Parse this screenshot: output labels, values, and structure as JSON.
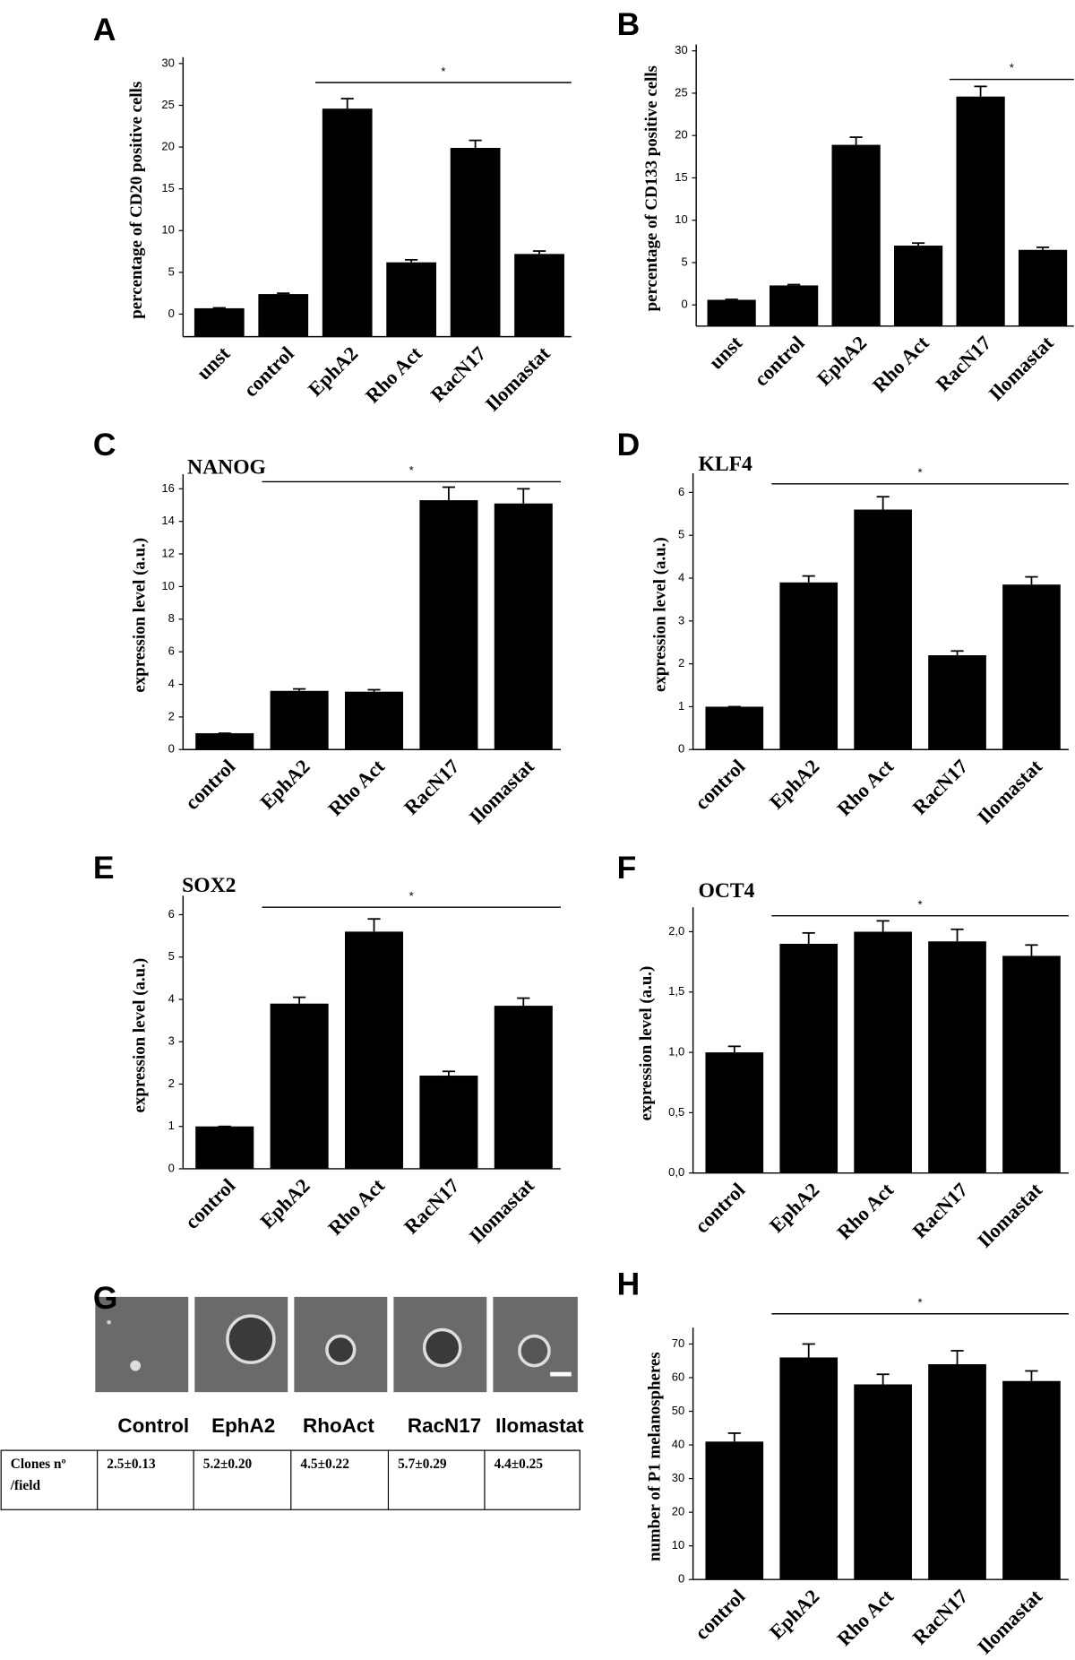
{
  "chart_data": [
    {
      "type": "bar",
      "panel": "A",
      "ylabel": "percentage of CD20 positive cells",
      "categories": [
        "unst",
        "control",
        "EphA2",
        "Rho Act",
        "RacN17",
        "Ilomastat"
      ],
      "values": [
        0.7,
        2.4,
        24.6,
        6.2,
        19.9,
        7.2
      ],
      "errors": [
        0.05,
        0.1,
        1.2,
        0.3,
        0.9,
        0.35
      ],
      "color": "#000000",
      "ylim": [
        -2.7,
        30
      ],
      "yticks": [
        0,
        5,
        10,
        15,
        20,
        25,
        30
      ],
      "annotation": "*",
      "significance_span": [
        "EphA2",
        "Ilomastat"
      ]
    },
    {
      "type": "bar",
      "panel": "B",
      "ylabel": "percentage of CD133 positive cells",
      "categories": [
        "unst",
        "control",
        "EphA2",
        "Rho Act",
        "RacN17",
        "Ilomastat"
      ],
      "values": [
        0.6,
        2.3,
        18.9,
        7.0,
        24.6,
        6.5
      ],
      "errors": [
        0.05,
        0.1,
        0.9,
        0.3,
        1.2,
        0.3
      ],
      "color": "#000000",
      "ylim": [
        -2.5,
        30
      ],
      "yticks": [
        0,
        5,
        10,
        15,
        20,
        25,
        30
      ],
      "annotation": "*",
      "significance_span": [
        "RacN17",
        "Ilomastat"
      ]
    },
    {
      "type": "bar",
      "panel": "C",
      "title": "NANOG",
      "ylabel": "expression level (a.u.)",
      "categories": [
        "control",
        "EphA2",
        "Rho Act",
        "RacN17",
        "Ilomastat"
      ],
      "values": [
        1.0,
        3.6,
        3.55,
        15.3,
        15.1
      ],
      "errors": [
        0,
        0.12,
        0.12,
        0.8,
        0.9
      ],
      "color": "#000000",
      "ylim": [
        0,
        16.5
      ],
      "yticks": [
        0,
        2,
        4,
        6,
        8,
        10,
        12,
        14,
        16
      ],
      "annotation": "*",
      "significance_span": [
        "EphA2",
        "Ilomastat"
      ]
    },
    {
      "type": "bar",
      "panel": "D",
      "title": "KLF4",
      "ylabel": "expression level (a.u.)",
      "categories": [
        "control",
        "EphA2",
        "Rho Act",
        "RacN17",
        "Ilomastat"
      ],
      "values": [
        1.0,
        3.9,
        5.6,
        2.2,
        3.85
      ],
      "errors": [
        0,
        0.15,
        0.3,
        0.1,
        0.18
      ],
      "color": "#000000",
      "ylim": [
        0,
        6.3
      ],
      "yticks": [
        0,
        1,
        2,
        3,
        4,
        5,
        6
      ],
      "annotation": "*",
      "significance_span": [
        "EphA2",
        "Ilomastat"
      ]
    },
    {
      "type": "bar",
      "panel": "E",
      "title": "SOX2",
      "ylabel": "expression level (a.u.)",
      "categories": [
        "control",
        "EphA2",
        "Rho Act",
        "RacN17",
        "Ilomastat"
      ],
      "values": [
        1.0,
        3.9,
        5.6,
        2.2,
        3.85
      ],
      "errors": [
        0,
        0.15,
        0.3,
        0.1,
        0.18
      ],
      "color": "#000000",
      "ylim": [
        0,
        6.3
      ],
      "yticks": [
        0,
        1,
        2,
        3,
        4,
        5,
        6
      ],
      "annotation": "*",
      "significance_span": [
        "EphA2",
        "Ilomastat"
      ]
    },
    {
      "type": "bar",
      "panel": "F",
      "title": "OCT4",
      "ylabel": "expression level (a.u.)",
      "categories": [
        "control",
        "EphA2",
        "Rho Act",
        "RacN17",
        "Ilomastat"
      ],
      "values": [
        1.0,
        1.9,
        2.0,
        1.92,
        1.8
      ],
      "errors": [
        0.05,
        0.09,
        0.09,
        0.1,
        0.09
      ],
      "color": "#000000",
      "ylim": [
        0,
        2.15
      ],
      "yticks": [
        {
          "value": 0,
          "label": "0,0"
        },
        {
          "value": 0.5,
          "label": "0,5"
        },
        {
          "value": 1,
          "label": "1,0"
        },
        {
          "value": 1.5,
          "label": "1,5"
        },
        {
          "value": 2,
          "label": "2,0"
        }
      ],
      "annotation": "*",
      "significance_span": [
        "EphA2",
        "Ilomastat"
      ]
    },
    {
      "type": "bar",
      "panel": "H",
      "ylabel": "number of P1 melanospheres",
      "categories": [
        "control",
        "EphA2",
        "Rho Act",
        "RacN17",
        "Ilomastat"
      ],
      "values": [
        41,
        66,
        58,
        64,
        59
      ],
      "errors": [
        2.5,
        4,
        3,
        4,
        3
      ],
      "color": "#000000",
      "ylim": [
        0,
        73
      ],
      "yticks": [
        0,
        10,
        20,
        30,
        40,
        50,
        60,
        70
      ],
      "annotation": "*",
      "significance_span": [
        "EphA2",
        "Ilomastat"
      ]
    }
  ],
  "panel_g": {
    "panel": "G",
    "columns": [
      "Control",
      "EphA2",
      "RhoAct",
      "RacN17",
      "Ilomastat"
    ],
    "row_label": [
      "Clones nº",
      "/field"
    ],
    "values": [
      "2.5±0.13",
      "5.2±0.20",
      "4.5±0.22",
      "5.7±0.29",
      "4.4±0.25"
    ]
  }
}
